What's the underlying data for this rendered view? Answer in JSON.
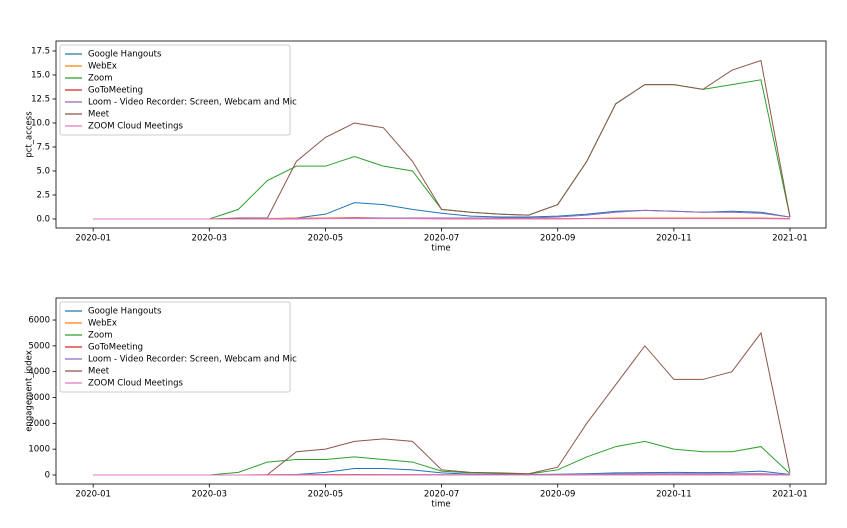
{
  "chart_data": [
    {
      "type": "line",
      "xlabel": "time",
      "ylabel": "pct_access",
      "legend": "upper left",
      "x": [
        0,
        0.5,
        1,
        1.5,
        2,
        2.5,
        3,
        3.5,
        4,
        4.5,
        5,
        5.5,
        6,
        6.5,
        7,
        7.5,
        8,
        8.5,
        9,
        9.5,
        10,
        10.5,
        11,
        11.5,
        12
      ],
      "xlim": [
        -0.64,
        12.62
      ],
      "xticks": [
        {
          "value": 0,
          "label": "2020-01"
        },
        {
          "value": 2,
          "label": "2020-03"
        },
        {
          "value": 4,
          "label": "2020-05"
        },
        {
          "value": 6,
          "label": "2020-07"
        },
        {
          "value": 8,
          "label": "2020-09"
        },
        {
          "value": 10,
          "label": "2020-11"
        },
        {
          "value": 12,
          "label": "2021-01"
        }
      ],
      "ylim": [
        -0.94,
        18.54
      ],
      "yticks": [
        {
          "value": 0,
          "label": "0.0"
        },
        2.5,
        {
          "value": 5,
          "label": "5.0"
        },
        7.5,
        {
          "value": 10,
          "label": "10.0"
        },
        12.5,
        {
          "value": 15,
          "label": "15.0"
        },
        17.5
      ],
      "series": [
        {
          "name": "Google Hangouts",
          "color": "#1f77b4",
          "values": [
            0,
            0,
            0,
            0,
            0,
            0,
            0,
            0.1,
            0.5,
            1.7,
            1.5,
            1.0,
            0.6,
            0.3,
            0.2,
            0.2,
            0.3,
            0.5,
            0.8,
            0.9,
            0.8,
            0.7,
            0.8,
            0.7,
            0.2
          ]
        },
        {
          "name": "WebEx",
          "color": "#ff7f0e",
          "values": [
            0,
            0,
            0,
            0,
            0,
            0,
            0.05,
            0.1,
            0.1,
            0.15,
            0.1,
            0.05,
            0.05,
            0.02,
            0.02,
            0.02,
            0.03,
            0.05,
            0.1,
            0.1,
            0.1,
            0.1,
            0.1,
            0.1,
            0.05
          ]
        },
        {
          "name": "Zoom",
          "color": "#2ca02c",
          "values": [
            0,
            0,
            0,
            0,
            0,
            1,
            4,
            5.5,
            5.5,
            6.5,
            5.5,
            5,
            1,
            0.7,
            0.5,
            0.4,
            1.5,
            6,
            12,
            14,
            14,
            13.5,
            14,
            14.5,
            0.2
          ]
        },
        {
          "name": "GoToMeeting",
          "color": "#d62728",
          "values": [
            0,
            0,
            0,
            0,
            0,
            0,
            0.02,
            0.05,
            0.05,
            0.05,
            0.05,
            0.05,
            0.03,
            0.02,
            0.02,
            0.02,
            0.03,
            0.05,
            0.05,
            0.05,
            0.05,
            0.05,
            0.05,
            0.05,
            0.02
          ]
        },
        {
          "name": "Loom - Video Recorder: Screen, Webcam and Mic",
          "color": "#9467bd",
          "values": [
            0,
            0,
            0,
            0,
            0,
            0,
            0,
            0,
            0.05,
            0.1,
            0.1,
            0.1,
            0.1,
            0.1,
            0.1,
            0.1,
            0.2,
            0.4,
            0.7,
            0.9,
            0.8,
            0.7,
            0.7,
            0.6,
            0.2
          ]
        },
        {
          "name": "Meet",
          "color": "#8c564b",
          "values": [
            0,
            0,
            0,
            0,
            0,
            0.1,
            0.1,
            6,
            8.5,
            10,
            9.5,
            6,
            1,
            0.7,
            0.5,
            0.4,
            1.5,
            6,
            12,
            14,
            14,
            13.5,
            15.5,
            16.5,
            0.2
          ]
        },
        {
          "name": "ZOOM Cloud Meetings",
          "color": "#e377c2",
          "values": [
            0,
            0,
            0,
            0,
            0,
            0,
            0.02,
            0.04,
            0.04,
            0.04,
            0.04,
            0.04,
            0.03,
            0.02,
            0.02,
            0.02,
            0.03,
            0.04,
            0.04,
            0.04,
            0.04,
            0.04,
            0.04,
            0.04,
            0.02
          ]
        }
      ]
    },
    {
      "type": "line",
      "xlabel": "time",
      "ylabel": "engagement_index",
      "legend": "upper left",
      "x": [
        0,
        0.5,
        1,
        1.5,
        2,
        2.5,
        3,
        3.5,
        4,
        4.5,
        5,
        5.5,
        6,
        6.5,
        7,
        7.5,
        8,
        8.5,
        9,
        9.5,
        10,
        10.5,
        11,
        11.5,
        12
      ],
      "xlim": [
        -0.64,
        12.62
      ],
      "xticks": [
        {
          "value": 0,
          "label": "2020-01"
        },
        {
          "value": 2,
          "label": "2020-03"
        },
        {
          "value": 4,
          "label": "2020-05"
        },
        {
          "value": 6,
          "label": "2020-07"
        },
        {
          "value": 8,
          "label": "2020-09"
        },
        {
          "value": 10,
          "label": "2020-11"
        },
        {
          "value": 12,
          "label": "2021-01"
        }
      ],
      "ylim": [
        -349,
        6853
      ],
      "yticks": [
        0,
        1000,
        2000,
        3000,
        4000,
        5000,
        6000
      ],
      "series": [
        {
          "name": "Google Hangouts",
          "color": "#1f77b4",
          "values": [
            0,
            0,
            0,
            0,
            0,
            0,
            0,
            20,
            100,
            250,
            250,
            200,
            80,
            30,
            20,
            20,
            30,
            50,
            80,
            90,
            100,
            90,
            100,
            150,
            20
          ]
        },
        {
          "name": "WebEx",
          "color": "#ff7f0e",
          "values": [
            0,
            0,
            0,
            0,
            0,
            0,
            5,
            10,
            15,
            20,
            15,
            10,
            5,
            3,
            3,
            3,
            5,
            10,
            15,
            15,
            15,
            15,
            15,
            15,
            5
          ]
        },
        {
          "name": "Zoom",
          "color": "#2ca02c",
          "values": [
            0,
            0,
            0,
            0,
            0,
            100,
            500,
            600,
            600,
            700,
            600,
            500,
            150,
            80,
            60,
            40,
            200,
            700,
            1100,
            1300,
            1000,
            900,
            900,
            1100,
            50
          ]
        },
        {
          "name": "GoToMeeting",
          "color": "#d62728",
          "values": [
            0,
            0,
            0,
            0,
            0,
            0,
            3,
            8,
            10,
            12,
            10,
            8,
            4,
            2,
            2,
            2,
            4,
            8,
            10,
            10,
            10,
            10,
            10,
            10,
            3
          ]
        },
        {
          "name": "Loom - Video Recorder: Screen, Webcam and Mic",
          "color": "#9467bd",
          "values": [
            0,
            0,
            0,
            0,
            0,
            0,
            0,
            0,
            2,
            5,
            5,
            5,
            5,
            5,
            5,
            5,
            10,
            20,
            40,
            50,
            50,
            50,
            50,
            50,
            10
          ]
        },
        {
          "name": "Meet",
          "color": "#8c564b",
          "values": [
            0,
            0,
            0,
            0,
            0,
            0,
            10,
            900,
            1000,
            1300,
            1400,
            1300,
            200,
            100,
            80,
            50,
            300,
            2000,
            3500,
            5000,
            3700,
            3700,
            4000,
            5500,
            100
          ]
        },
        {
          "name": "ZOOM Cloud Meetings",
          "color": "#e377c2",
          "values": [
            0,
            0,
            0,
            0,
            0,
            0,
            2,
            5,
            5,
            6,
            5,
            5,
            3,
            2,
            2,
            2,
            3,
            5,
            6,
            6,
            6,
            6,
            6,
            6,
            2
          ]
        }
      ]
    }
  ]
}
